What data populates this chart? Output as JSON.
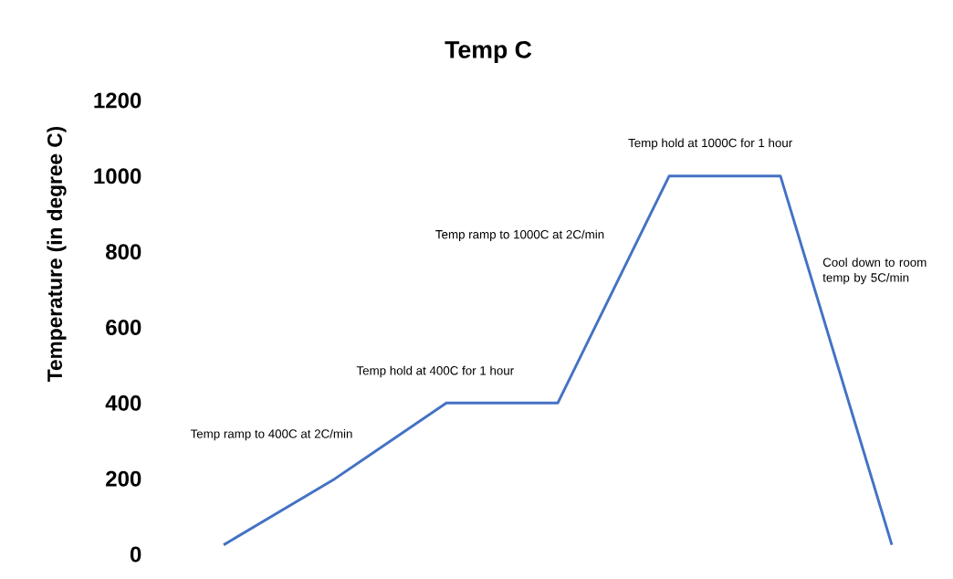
{
  "chart_data": {
    "type": "line",
    "title": "Temp C",
    "ylabel": "Temperature (in degree C)",
    "categories": [
      null,
      null,
      null,
      null,
      null,
      null,
      null
    ],
    "series": [
      {
        "color": "#4472c4",
        "values": [
          25,
          200,
          400,
          400,
          1000,
          1000,
          25
        ]
      }
    ],
    "ylim": [
      0,
      1200
    ],
    "yticks": [
      0,
      200,
      400,
      600,
      800,
      1000,
      1200
    ],
    "annotations": [
      "Temp ramp to 400C at 2C/min",
      "Temp hold at 400C for 1 hour",
      "Temp ramp to 1000C at 2C/min",
      "Temp hold at 1000C for 1 hour",
      "Cool down to room temp by 5C/min"
    ]
  }
}
